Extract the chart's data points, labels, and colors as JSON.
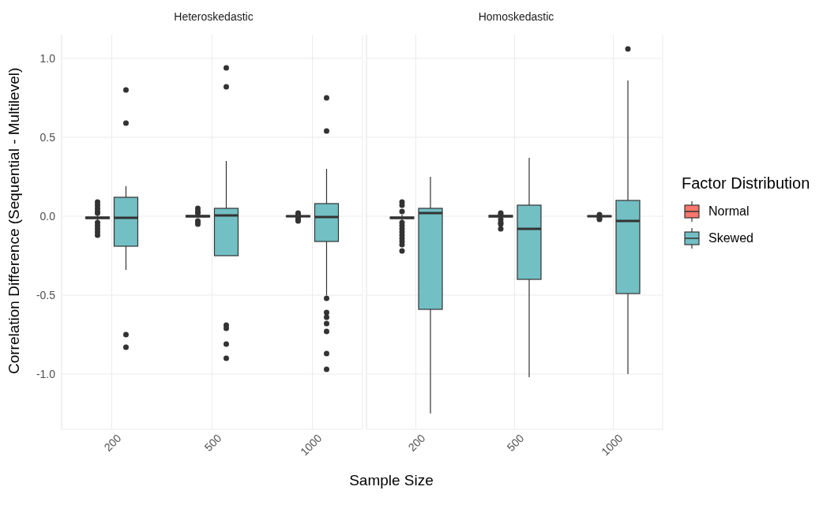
{
  "chart_data": [
    {
      "type": "box",
      "title": "Heteroskedastic",
      "ylabel": "Correlation Difference (Sequential - Multilevel)",
      "xlabel": "Sample Size",
      "categories": [
        "200",
        "500",
        "1000"
      ],
      "ylim": [
        -1.35,
        1.15
      ],
      "yticks": [
        {
          "value": -1.0,
          "label": "-1.0"
        },
        {
          "value": -0.5,
          "label": "-0.5"
        },
        {
          "value": 0.0,
          "label": "0.0"
        },
        {
          "value": 0.5,
          "label": "0.5"
        },
        {
          "value": 1.0,
          "label": "1.0"
        }
      ],
      "grid": true,
      "legend": "right",
      "legend_title": "Factor Distribution",
      "series": [
        {
          "name": "Normal",
          "color": "#f8766d",
          "boxes": [
            {
              "low": -0.03,
              "q1": -0.015,
              "median": -0.01,
              "q3": -0.005,
              "high": 0.01,
              "outliers": [
                0.09,
                0.07,
                0.05,
                0.03,
                0.02,
                -0.04,
                -0.06,
                -0.08,
                -0.1,
                -0.12
              ]
            },
            {
              "low": -0.01,
              "q1": -0.005,
              "median": 0.0,
              "q3": 0.005,
              "high": 0.01,
              "outliers": [
                0.05,
                0.03,
                0.02,
                -0.03,
                -0.04,
                -0.05
              ]
            },
            {
              "low": -0.005,
              "q1": -0.003,
              "median": 0.0,
              "q3": 0.003,
              "high": 0.005,
              "outliers": [
                0.02,
                0.01,
                -0.01,
                -0.02,
                -0.03
              ]
            }
          ]
        },
        {
          "name": "Skewed",
          "color": "#72bfc4",
          "boxes": [
            {
              "low": -0.34,
              "q1": -0.19,
              "median": -0.01,
              "q3": 0.12,
              "high": 0.19,
              "outliers": [
                0.8,
                0.59,
                -0.75,
                -0.83
              ]
            },
            {
              "low": -0.25,
              "q1": -0.25,
              "median": 0.005,
              "q3": 0.05,
              "high": 0.35,
              "outliers": [
                0.94,
                0.82,
                -0.69,
                -0.71,
                -0.81,
                -0.9
              ]
            },
            {
              "low": -0.5,
              "q1": -0.16,
              "median": -0.005,
              "q3": 0.08,
              "high": 0.3,
              "outliers": [
                0.75,
                0.54,
                -0.52,
                -0.61,
                -0.64,
                -0.68,
                -0.73,
                -0.87,
                -0.97
              ]
            }
          ]
        }
      ]
    },
    {
      "type": "box",
      "title": "Homoskedastic",
      "categories": [
        "200",
        "500",
        "1000"
      ],
      "ylim": [
        -1.35,
        1.15
      ],
      "yticks": [
        -1,
        -0.5,
        0,
        0.5,
        1
      ],
      "grid": true,
      "tick_labels": "x",
      "series": [
        {
          "color": "#f8766d",
          "boxes": [
            {
              "low": -0.03,
              "q1": -0.015,
              "median": -0.01,
              "q3": -0.005,
              "high": 0.01,
              "outliers": [
                0.09,
                0.07,
                0.03,
                -0.04,
                -0.06,
                -0.08,
                -0.1,
                -0.12,
                -0.14,
                -0.16,
                -0.18,
                -0.22
              ]
            },
            {
              "low": -0.01,
              "q1": -0.005,
              "median": 0.0,
              "q3": 0.005,
              "high": 0.01,
              "outliers": [
                0.02,
                0.01,
                -0.02,
                -0.04,
                -0.05,
                -0.08
              ]
            },
            {
              "low": -0.005,
              "q1": -0.003,
              "median": 0.0,
              "q3": 0.003,
              "high": 0.005,
              "outliers": [
                0.01,
                -0.01,
                -0.02
              ]
            }
          ]
        },
        {
          "color": "#72bfc4",
          "boxes": [
            {
              "low": -1.25,
              "q1": -0.59,
              "median": 0.02,
              "q3": 0.05,
              "high": 0.25
            },
            {
              "low": -1.02,
              "q1": -0.4,
              "median": -0.08,
              "q3": 0.07,
              "high": 0.37
            },
            {
              "low": -1.0,
              "q1": -0.49,
              "median": -0.03,
              "q3": 0.1,
              "high": 0.86,
              "outliers": [
                1.06
              ]
            }
          ]
        }
      ]
    }
  ]
}
